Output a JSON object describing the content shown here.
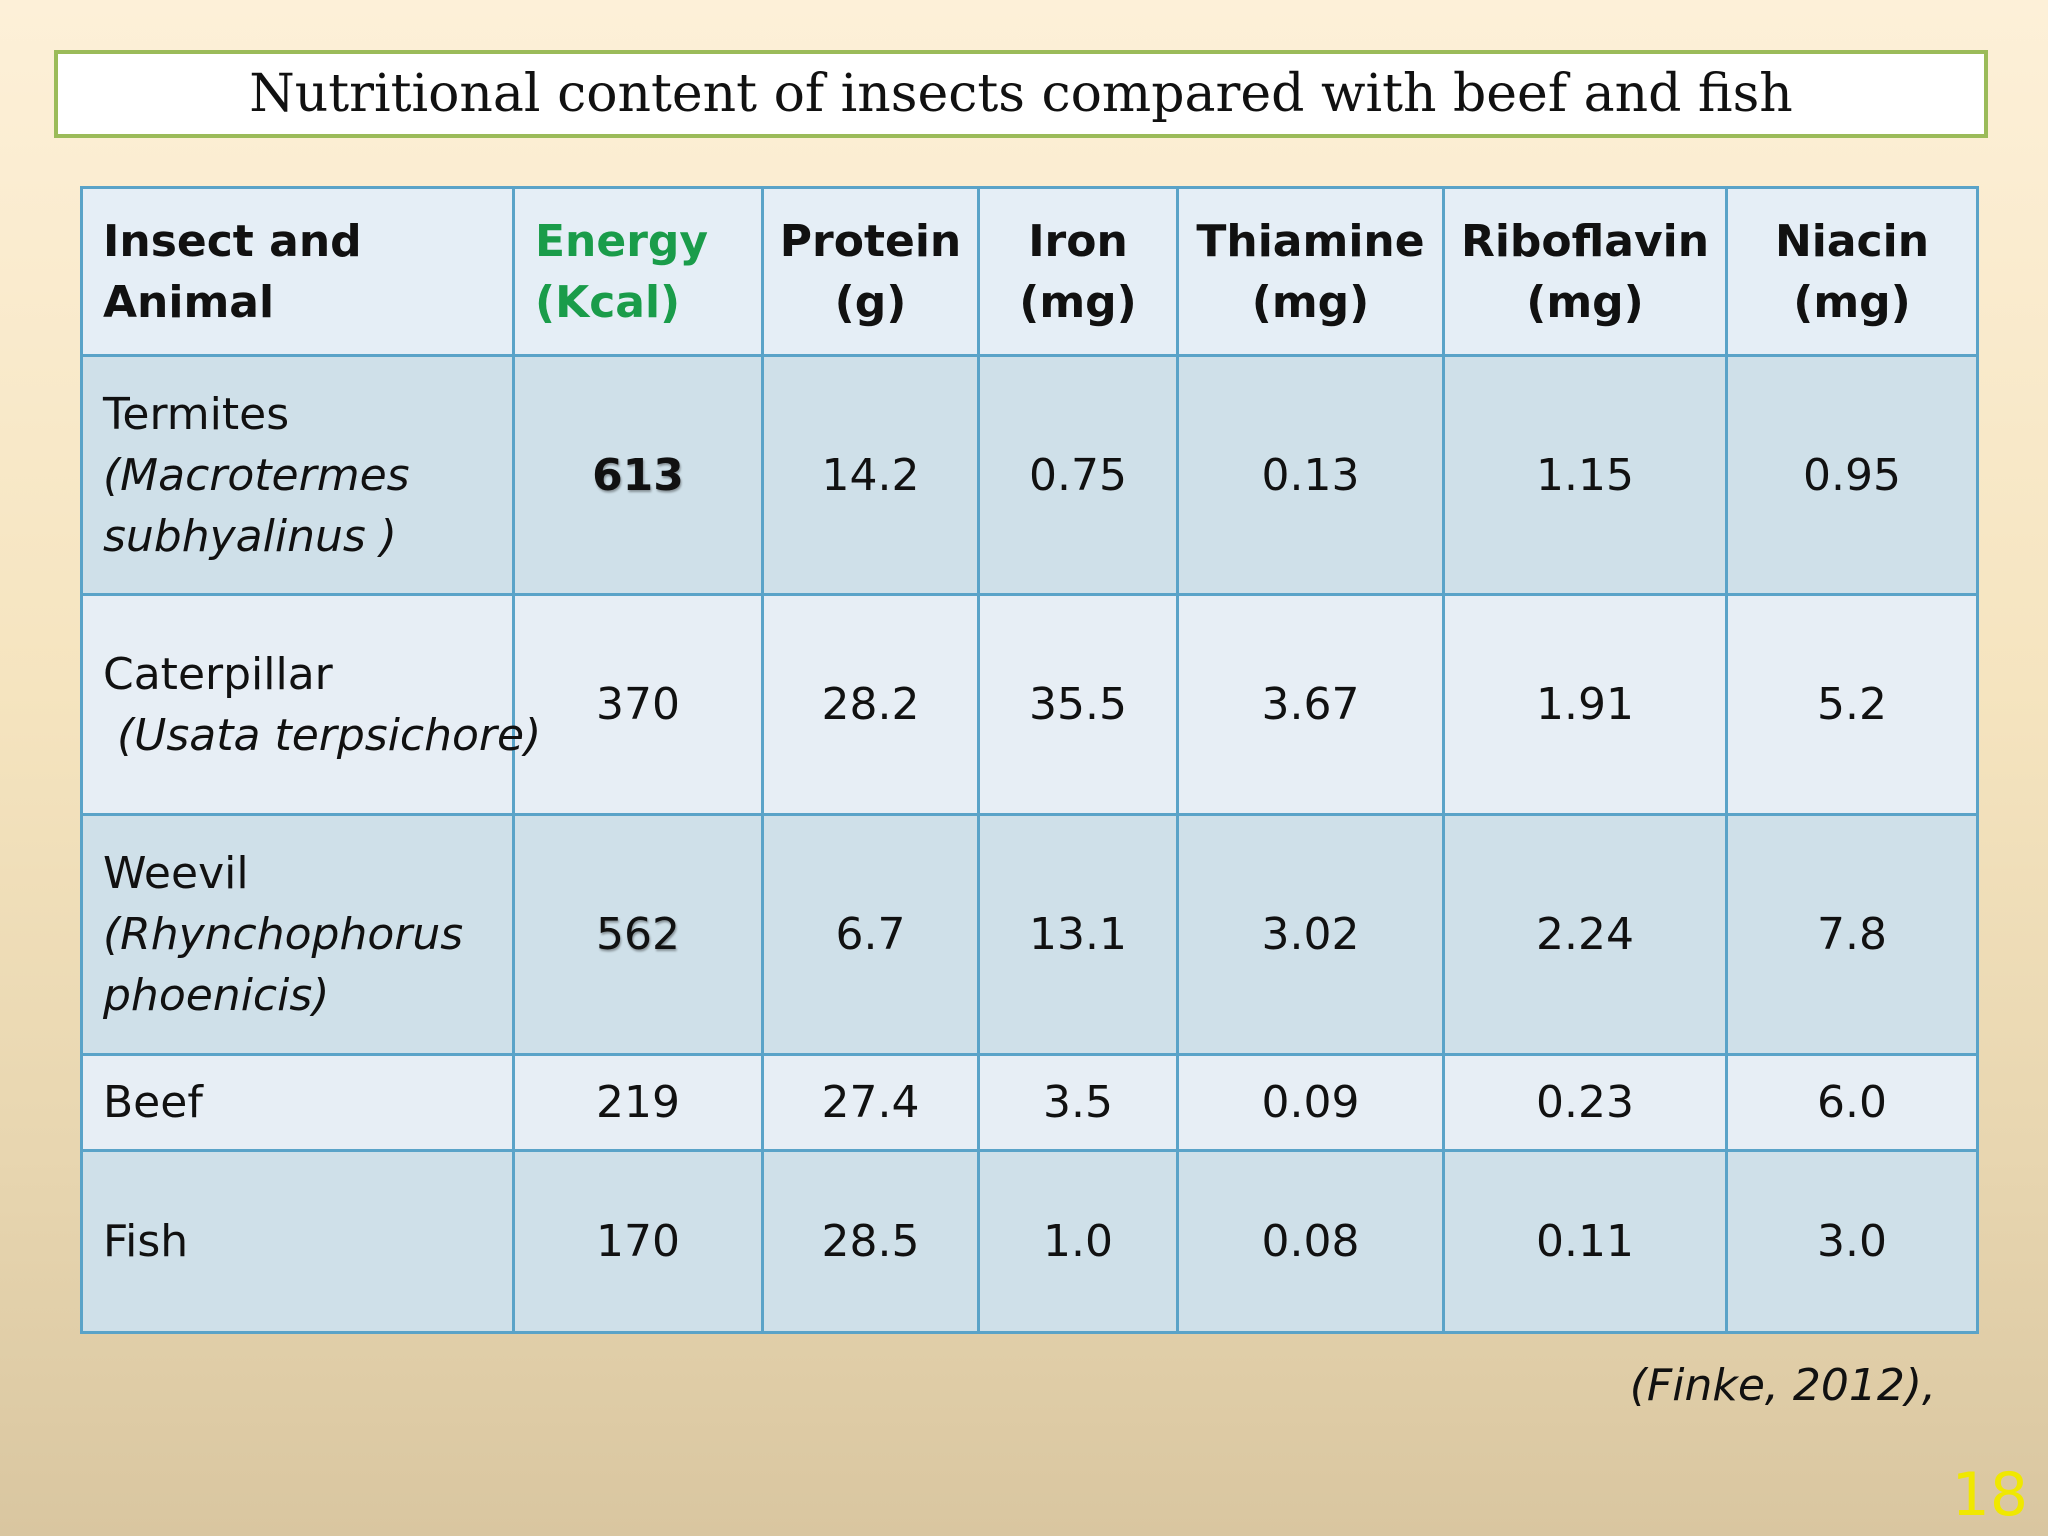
{
  "title": "Nutritional content of insects compared with beef and fish",
  "table": {
    "headers": [
      {
        "line1": "Insect and Animal",
        "line2": ""
      },
      {
        "line1": "Energy",
        "line2": "(Kcal)"
      },
      {
        "line1": "Protein",
        "line2": "(g)"
      },
      {
        "line1": "Iron",
        "line2": "(mg)"
      },
      {
        "line1": "Thiamine",
        "line2": "(mg)"
      },
      {
        "line1": "Riboflavin",
        "line2": "(mg)"
      },
      {
        "line1": "Niacin",
        "line2": "(mg)"
      }
    ],
    "rows": [
      {
        "common": "Termites",
        "scientific": "(Macrotermes subhyalinus )",
        "values": [
          "613",
          "14.2",
          "0.75",
          "0.13",
          "1.15",
          "0.95"
        ]
      },
      {
        "common": "Caterpillar",
        "scientific": " (Usata terpsichore)",
        "values": [
          "370",
          "28.2",
          "35.5",
          "3.67",
          "1.91",
          "5.2"
        ]
      },
      {
        "common": "Weevil",
        "scientific": "(Rhynchophorus phoenicis)",
        "values": [
          "562",
          "6.7",
          "13.1",
          "3.02",
          "2.24",
          "7.8"
        ]
      },
      {
        "common": "Beef",
        "scientific": "",
        "values": [
          "219",
          "27.4",
          "3.5",
          "0.09",
          "0.23",
          "6.0"
        ]
      },
      {
        "common": "Fish",
        "scientific": "",
        "values": [
          "170",
          "28.5",
          "1.0",
          "0.08",
          "0.11",
          "3.0"
        ]
      }
    ]
  },
  "citation": "(Finke, 2012),",
  "page_number": "18",
  "colors": {
    "title_border": "#9bbb59",
    "energy_header": "#1a9c4a",
    "highlight_red": "#e0151a",
    "grid_line": "#5aa3c8",
    "page_number": "#f0e800"
  }
}
